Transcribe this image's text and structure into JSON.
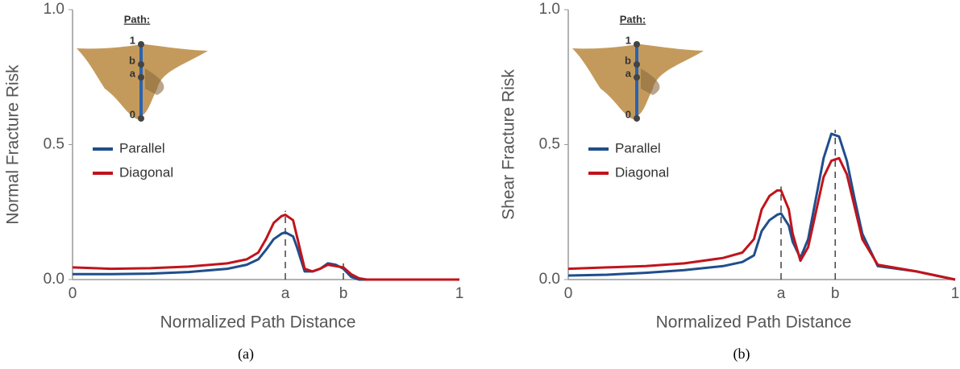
{
  "chart_data": [
    {
      "type": "line",
      "ylabel": "Normal Fracture Risk",
      "xlabel": "Normalized Path Distance",
      "caption": "(a)",
      "inset_title": "Path:",
      "inset_labels": [
        "1",
        "b",
        "a",
        "0"
      ],
      "x": [
        0,
        0.1,
        0.2,
        0.3,
        0.4,
        0.45,
        0.48,
        0.5,
        0.52,
        0.54,
        0.55,
        0.57,
        0.58,
        0.6,
        0.62,
        0.64,
        0.66,
        0.68,
        0.7,
        0.72,
        0.74,
        0.76,
        0.8,
        0.9,
        1
      ],
      "xlim": [
        0,
        1
      ],
      "xticks": [
        0,
        {
          "value": 0.55,
          "label": "a"
        },
        {
          "value": 0.7,
          "label": "b"
        },
        1
      ],
      "ylim": [
        0,
        1
      ],
      "yticks": [
        {
          "value": 0,
          "label": "0.0"
        },
        0.5,
        {
          "value": 1,
          "label": "1.0"
        }
      ],
      "legend": "upper left",
      "series": [
        {
          "name": "Parallel",
          "color": "#1f4e8c",
          "values": [
            0.02,
            0.02,
            0.022,
            0.028,
            0.04,
            0.055,
            0.075,
            0.11,
            0.15,
            0.17,
            0.175,
            0.16,
            0.12,
            0.03,
            0.03,
            0.04,
            0.06,
            0.055,
            0.04,
            0.01,
            0,
            0,
            0,
            0,
            0
          ]
        },
        {
          "name": "Diagonal",
          "color": "#c0141c",
          "values": [
            0.045,
            0.04,
            0.042,
            0.048,
            0.06,
            0.075,
            0.1,
            0.15,
            0.21,
            0.235,
            0.24,
            0.22,
            0.16,
            0.04,
            0.03,
            0.04,
            0.055,
            0.05,
            0.045,
            0.02,
            0.005,
            0,
            0,
            0,
            0
          ]
        }
      ]
    },
    {
      "type": "line",
      "ylabel": "Shear Fracture Risk",
      "xlabel": "Normalized Path Distance",
      "caption": "(b)",
      "inset_title": "Path:",
      "inset_labels": [
        "1",
        "b",
        "a",
        "0"
      ],
      "x": [
        0,
        0.1,
        0.2,
        0.3,
        0.4,
        0.45,
        0.48,
        0.5,
        0.52,
        0.54,
        0.55,
        0.57,
        0.58,
        0.6,
        0.62,
        0.64,
        0.66,
        0.68,
        0.7,
        0.72,
        0.74,
        0.76,
        0.8,
        0.9,
        1
      ],
      "xlim": [
        0,
        1
      ],
      "xticks": [
        0,
        {
          "value": 0.55,
          "label": "a"
        },
        {
          "value": 0.69,
          "label": "b"
        },
        1
      ],
      "ylim": [
        0,
        1
      ],
      "yticks": [
        {
          "value": 0,
          "label": "0.0"
        },
        0.5,
        {
          "value": 1,
          "label": "1.0"
        }
      ],
      "legend": "upper left",
      "series": [
        {
          "name": "Parallel",
          "color": "#1f4e8c",
          "values": [
            0.015,
            0.018,
            0.025,
            0.035,
            0.05,
            0.065,
            0.09,
            0.18,
            0.22,
            0.24,
            0.245,
            0.2,
            0.14,
            0.08,
            0.15,
            0.3,
            0.45,
            0.54,
            0.53,
            0.44,
            0.3,
            0.17,
            0.05,
            0.03,
            0
          ]
        },
        {
          "name": "Diagonal",
          "color": "#c0141c",
          "values": [
            0.04,
            0.045,
            0.05,
            0.06,
            0.08,
            0.1,
            0.15,
            0.26,
            0.31,
            0.33,
            0.33,
            0.26,
            0.17,
            0.07,
            0.12,
            0.25,
            0.38,
            0.44,
            0.45,
            0.39,
            0.27,
            0.15,
            0.055,
            0.03,
            0
          ]
        }
      ]
    }
  ]
}
